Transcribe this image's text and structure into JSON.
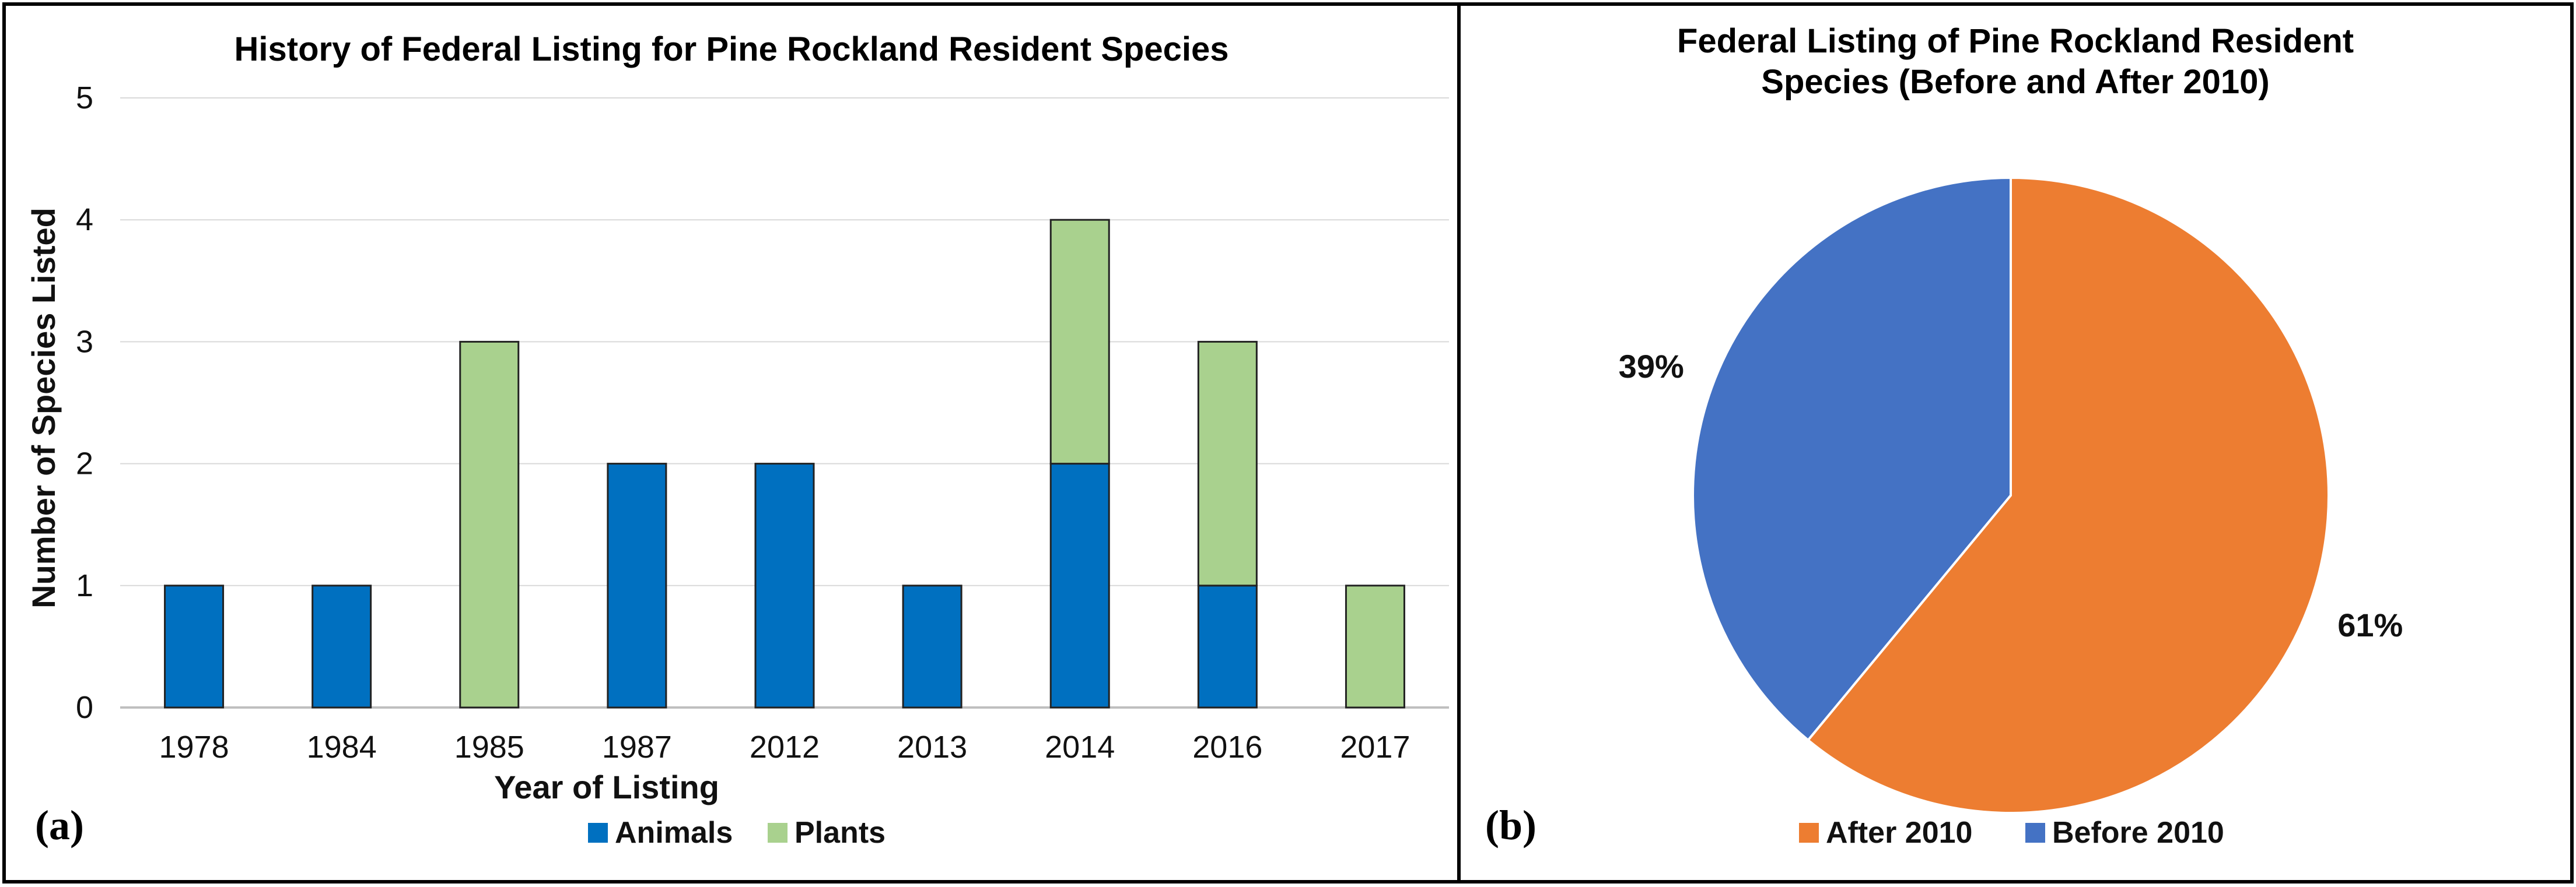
{
  "chart_data": [
    {
      "type": "bar",
      "stacked": true,
      "panel_label": "(a)",
      "title": "History of Federal Listing for Pine Rockland Resident Species",
      "xlabel": "Year of Listing",
      "ylabel": "Number of Species Listed",
      "ylim": [
        0,
        5
      ],
      "yticks": [
        0,
        1,
        2,
        3,
        4,
        5
      ],
      "grid": true,
      "legend_position": "bottom",
      "categories": [
        "1978",
        "1984",
        "1985",
        "1987",
        "2012",
        "2013",
        "2014",
        "2016",
        "2017"
      ],
      "series": [
        {
          "name": "Animals",
          "color": "#0070C0",
          "values": [
            1,
            1,
            0,
            2,
            2,
            1,
            2,
            1,
            0
          ]
        },
        {
          "name": "Plants",
          "color": "#A9D18E",
          "values": [
            0,
            0,
            3,
            0,
            0,
            0,
            2,
            2,
            1
          ]
        }
      ]
    },
    {
      "type": "pie",
      "panel_label": "(b)",
      "title_lines": [
        "Federal Listing of Pine Rockland Resident",
        "Species (Before and After 2010)"
      ],
      "legend_position": "bottom",
      "slices": [
        {
          "name": "After 2010",
          "value": 61,
          "label": "61%",
          "color": "#ED7D31"
        },
        {
          "name": "Before 2010",
          "value": 39,
          "label": "39%",
          "color": "#4472C4"
        }
      ]
    }
  ]
}
